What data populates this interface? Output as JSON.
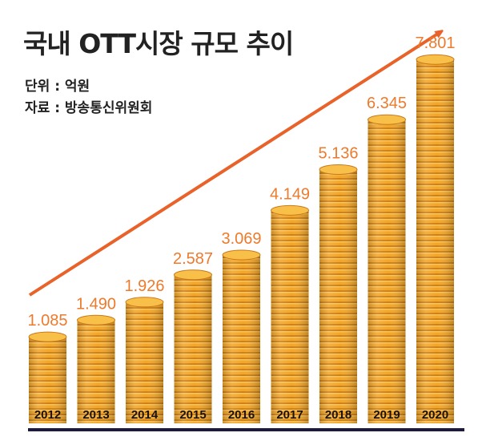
{
  "title": "국내 OTT시장 규모 추이",
  "unit": "단위 : 억원",
  "source": "자료 : 방송통신위원회",
  "colors": {
    "arrow": "#e8622a",
    "label": "#ee7a2c",
    "coin": "#f2a628",
    "coin_dark": "#c9781a",
    "coin_top": "#f8c049",
    "baseline": "#1e1a3c"
  },
  "chart_data": {
    "type": "bar",
    "categories": [
      "2012",
      "2013",
      "2014",
      "2015",
      "2016",
      "2017",
      "2018",
      "2019",
      "2020"
    ],
    "values": [
      1.085,
      1.49,
      1.926,
      2.587,
      3.069,
      4.149,
      5.136,
      6.345,
      7.801
    ],
    "value_labels": [
      "1.085",
      "1.490",
      "1.926",
      "2.587",
      "3.069",
      "4.149",
      "5.136",
      "6.345",
      "7.801"
    ],
    "title": "국내 OTT시장 규모 추이",
    "xlabel": "",
    "ylabel": "",
    "grid": false,
    "trend_arrow": true
  }
}
